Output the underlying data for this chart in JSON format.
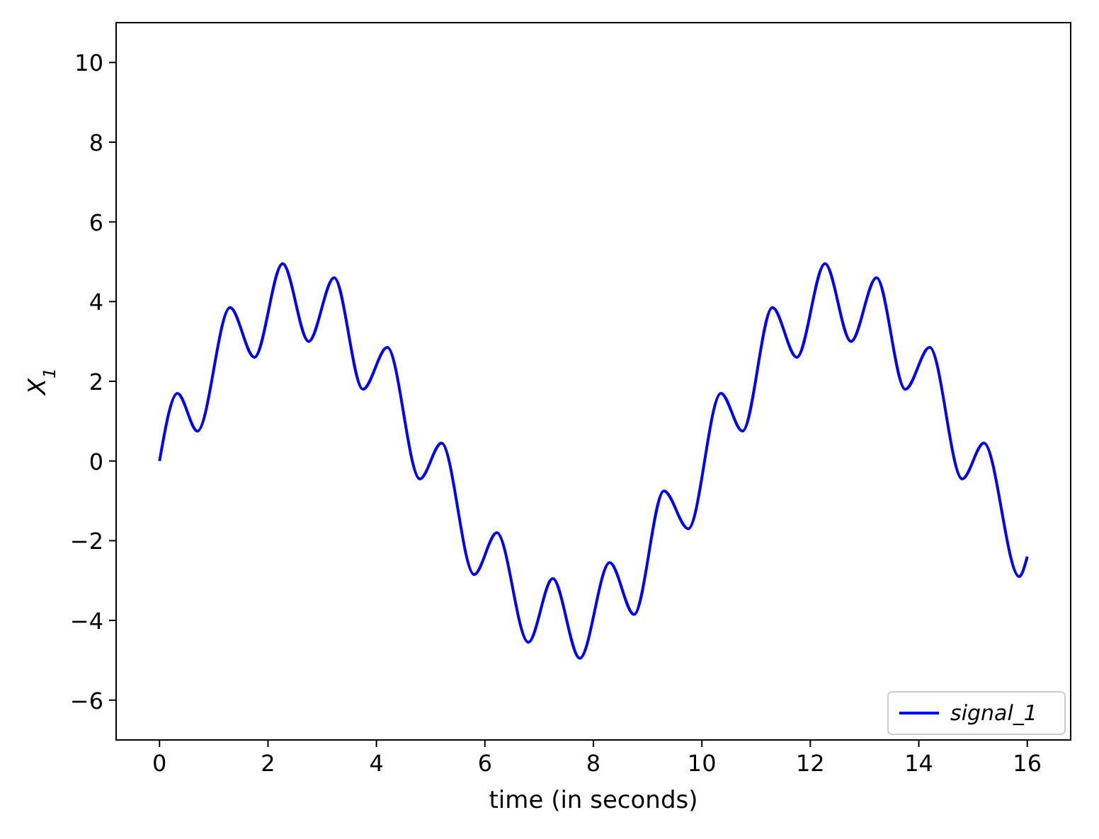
{
  "chart_data": {
    "type": "line",
    "xlabel": "time (in seconds)",
    "ylabel": "X$_{1}$",
    "xlim": [
      -0.8,
      16.8
    ],
    "ylim": [
      -7,
      11
    ],
    "xticks": [
      0,
      2,
      4,
      6,
      8,
      10,
      12,
      14,
      16
    ],
    "yticks": [
      -6,
      -4,
      -2,
      0,
      2,
      4,
      6,
      8,
      10
    ],
    "grid": false,
    "legend": "bottom right",
    "line_style": "solid",
    "marker": "none",
    "series": [
      {
        "name": "signal_1",
        "color": "#0000ff",
        "x": [
          0,
          0.33,
          0.7,
          1.3,
          1.75,
          2.27,
          2.75,
          3.22,
          3.75,
          4.2,
          4.8,
          5.2,
          5.8,
          6.22,
          6.8,
          7.25,
          7.75,
          8.3,
          8.75,
          9.3,
          9.75,
          10.35,
          10.75,
          11.3,
          11.75,
          12.27,
          12.75,
          13.22,
          13.75,
          14.2,
          14.8,
          15.2,
          15.85,
          16
        ],
        "values": [
          0,
          1.7,
          0.75,
          3.85,
          2.6,
          4.95,
          3.0,
          4.6,
          1.8,
          2.85,
          -0.45,
          0.45,
          -2.85,
          -1.8,
          -4.55,
          -2.95,
          -4.95,
          -2.55,
          -3.85,
          -0.75,
          -1.7,
          1.7,
          0.75,
          3.85,
          2.6,
          4.95,
          3.0,
          4.6,
          1.8,
          2.85,
          -0.45,
          0.45,
          -2.9,
          -2.4
        ]
      }
    ]
  }
}
